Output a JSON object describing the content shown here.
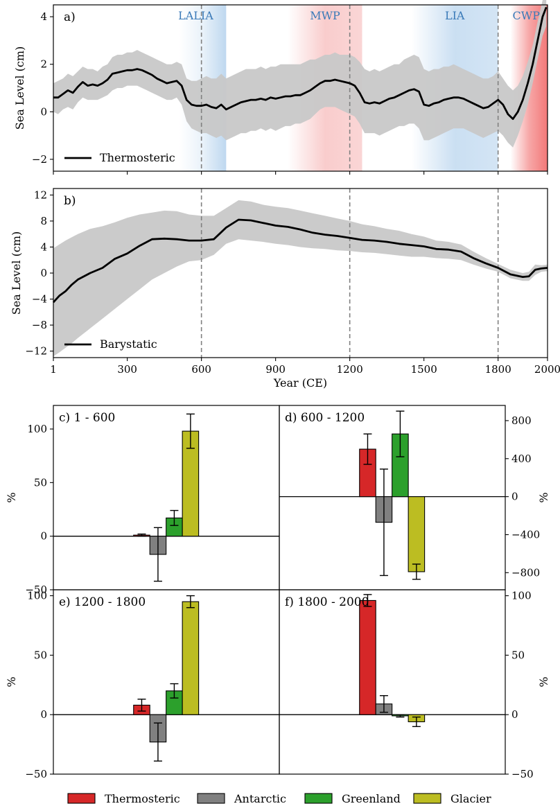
{
  "chart_data": [
    {
      "id": "a",
      "type": "line",
      "panel_label": "a)",
      "ylabel": "Sea Level (cm)",
      "xlim": [
        1,
        2000
      ],
      "ylim": [
        -2.5,
        4.5
      ],
      "yticks": [
        -2,
        0,
        2,
        4
      ],
      "ytick_labels": [
        "−2",
        "0",
        "2",
        "4"
      ],
      "grid": false,
      "legend": {
        "position": "bottom-left",
        "entries": [
          "Thermosteric"
        ]
      },
      "vlines": [
        600,
        1200,
        1800
      ],
      "periods": [
        {
          "label": "LALIA",
          "start": 510,
          "end": 700,
          "color": "#6fa8dc"
        },
        {
          "label": "MWP",
          "start": 950,
          "end": 1250,
          "color": "#f4a3a3"
        },
        {
          "label": "LIA",
          "start": 1450,
          "end": 1800,
          "color": "#9fc5e8"
        },
        {
          "label": "CWP",
          "start": 1850,
          "end": 2000,
          "color": "#f06060"
        }
      ],
      "series": [
        {
          "name": "Thermosteric",
          "x": [
            1,
            20,
            40,
            60,
            80,
            100,
            120,
            140,
            160,
            180,
            200,
            220,
            240,
            260,
            280,
            300,
            320,
            340,
            360,
            380,
            400,
            420,
            440,
            460,
            480,
            500,
            520,
            540,
            560,
            580,
            600,
            620,
            640,
            660,
            680,
            700,
            720,
            740,
            760,
            780,
            800,
            820,
            840,
            860,
            880,
            900,
            920,
            940,
            960,
            980,
            1000,
            1020,
            1040,
            1060,
            1080,
            1100,
            1120,
            1140,
            1160,
            1180,
            1200,
            1220,
            1240,
            1260,
            1280,
            1300,
            1320,
            1340,
            1360,
            1380,
            1400,
            1420,
            1440,
            1460,
            1480,
            1500,
            1520,
            1540,
            1560,
            1580,
            1600,
            1620,
            1640,
            1660,
            1680,
            1700,
            1720,
            1740,
            1760,
            1780,
            1800,
            1820,
            1840,
            1860,
            1880,
            1900,
            1920,
            1940,
            1960,
            1980,
            1995
          ],
          "y": [
            0.6,
            0.6,
            0.75,
            0.9,
            0.8,
            1.05,
            1.25,
            1.1,
            1.15,
            1.1,
            1.2,
            1.35,
            1.6,
            1.65,
            1.7,
            1.75,
            1.75,
            1.8,
            1.75,
            1.65,
            1.55,
            1.4,
            1.3,
            1.2,
            1.25,
            1.3,
            1.1,
            0.5,
            0.3,
            0.25,
            0.25,
            0.3,
            0.2,
            0.15,
            0.3,
            0.1,
            0.2,
            0.3,
            0.4,
            0.45,
            0.5,
            0.5,
            0.55,
            0.5,
            0.6,
            0.55,
            0.6,
            0.65,
            0.65,
            0.7,
            0.7,
            0.8,
            0.9,
            1.05,
            1.2,
            1.3,
            1.3,
            1.35,
            1.3,
            1.25,
            1.2,
            1.1,
            0.8,
            0.4,
            0.35,
            0.4,
            0.35,
            0.45,
            0.55,
            0.6,
            0.7,
            0.8,
            0.9,
            0.95,
            0.85,
            0.3,
            0.25,
            0.35,
            0.4,
            0.5,
            0.55,
            0.6,
            0.6,
            0.55,
            0.45,
            0.35,
            0.25,
            0.15,
            0.2,
            0.35,
            0.5,
            0.3,
            -0.1,
            -0.3,
            0.0,
            0.5,
            1.2,
            2.0,
            3.0,
            4.0,
            4.4
          ],
          "lower": [
            0.0,
            -0.1,
            0.1,
            0.2,
            0.1,
            0.4,
            0.6,
            0.5,
            0.5,
            0.5,
            0.6,
            0.7,
            0.9,
            1.0,
            1.0,
            1.1,
            1.1,
            1.1,
            1.0,
            0.9,
            0.8,
            0.7,
            0.6,
            0.5,
            0.5,
            0.6,
            0.3,
            -0.4,
            -0.7,
            -0.8,
            -0.9,
            -0.9,
            -1.0,
            -1.1,
            -1.0,
            -1.2,
            -1.1,
            -1.0,
            -0.9,
            -0.9,
            -0.8,
            -0.8,
            -0.7,
            -0.8,
            -0.7,
            -0.8,
            -0.7,
            -0.6,
            -0.6,
            -0.5,
            -0.5,
            -0.4,
            -0.3,
            -0.1,
            0.1,
            0.2,
            0.2,
            0.2,
            0.1,
            0.0,
            -0.1,
            -0.2,
            -0.5,
            -0.9,
            -0.9,
            -0.9,
            -1.0,
            -0.9,
            -0.8,
            -0.7,
            -0.6,
            -0.6,
            -0.5,
            -0.5,
            -0.7,
            -1.2,
            -1.2,
            -1.1,
            -1.0,
            -0.9,
            -0.8,
            -0.7,
            -0.7,
            -0.7,
            -0.8,
            -0.9,
            -1.0,
            -1.1,
            -1.0,
            -0.9,
            -0.8,
            -1.0,
            -1.3,
            -1.5,
            -1.0,
            -0.4,
            0.3,
            1.2,
            2.2,
            3.2,
            3.6
          ],
          "upper": [
            1.2,
            1.3,
            1.4,
            1.6,
            1.5,
            1.7,
            1.9,
            1.8,
            1.8,
            1.7,
            1.9,
            2.0,
            2.3,
            2.4,
            2.4,
            2.5,
            2.5,
            2.6,
            2.5,
            2.4,
            2.3,
            2.2,
            2.1,
            2.0,
            2.0,
            2.1,
            2.0,
            1.4,
            1.3,
            1.3,
            1.4,
            1.5,
            1.4,
            1.4,
            1.6,
            1.4,
            1.5,
            1.6,
            1.7,
            1.8,
            1.8,
            1.8,
            1.9,
            1.8,
            1.9,
            1.9,
            2.0,
            2.0,
            2.0,
            2.0,
            2.0,
            2.1,
            2.2,
            2.2,
            2.3,
            2.4,
            2.4,
            2.5,
            2.4,
            2.4,
            2.4,
            2.3,
            2.1,
            1.8,
            1.7,
            1.8,
            1.7,
            1.8,
            1.9,
            2.0,
            2.0,
            2.2,
            2.3,
            2.4,
            2.3,
            1.8,
            1.7,
            1.8,
            1.8,
            1.9,
            1.9,
            2.0,
            1.9,
            1.8,
            1.7,
            1.6,
            1.5,
            1.4,
            1.4,
            1.5,
            1.7,
            1.4,
            1.1,
            0.9,
            1.1,
            1.5,
            2.1,
            2.8,
            3.8,
            4.7,
            5.0
          ]
        }
      ]
    },
    {
      "id": "b",
      "type": "line",
      "panel_label": "b)",
      "xlabel": "Year (CE)",
      "ylabel": "Sea Level (cm)",
      "xlim": [
        1,
        2000
      ],
      "ylim": [
        -13,
        13
      ],
      "xticks": [
        1,
        300,
        600,
        900,
        1200,
        1500,
        1800,
        2000
      ],
      "yticks": [
        -12,
        -8,
        -4,
        0,
        4,
        8,
        12
      ],
      "ytick_labels": [
        "−12",
        "−8",
        "−4",
        "0",
        "4",
        "8",
        "12"
      ],
      "grid": false,
      "legend": {
        "position": "bottom-left",
        "entries": [
          "Barystatic"
        ]
      },
      "vlines": [
        600,
        1200,
        1800
      ],
      "series": [
        {
          "name": "Barystatic",
          "x": [
            1,
            25,
            50,
            75,
            100,
            150,
            200,
            250,
            300,
            350,
            400,
            450,
            500,
            550,
            600,
            650,
            700,
            750,
            800,
            850,
            900,
            950,
            1000,
            1050,
            1100,
            1150,
            1200,
            1250,
            1300,
            1350,
            1400,
            1450,
            1500,
            1550,
            1600,
            1650,
            1700,
            1750,
            1800,
            1850,
            1900,
            1925,
            1950,
            1975,
            2000
          ],
          "y": [
            -4.5,
            -3.5,
            -2.8,
            -1.8,
            -1.0,
            0.0,
            0.8,
            2.2,
            3.0,
            4.2,
            5.2,
            5.3,
            5.2,
            5.0,
            5.0,
            5.2,
            7.0,
            8.2,
            8.1,
            7.7,
            7.3,
            7.1,
            6.7,
            6.2,
            5.9,
            5.7,
            5.4,
            5.1,
            5.0,
            4.8,
            4.5,
            4.3,
            4.1,
            3.7,
            3.6,
            3.3,
            2.3,
            1.5,
            0.8,
            -0.2,
            -0.6,
            -0.5,
            0.5,
            0.7,
            0.8
          ],
          "lower": [
            -12.8,
            -12.2,
            -11.5,
            -10.8,
            -10.0,
            -8.5,
            -7.0,
            -5.5,
            -4.0,
            -2.5,
            -1.0,
            0.0,
            1.0,
            1.8,
            2.0,
            2.8,
            4.5,
            5.2,
            5.0,
            4.8,
            4.5,
            4.3,
            4.0,
            3.8,
            3.7,
            3.5,
            3.4,
            3.2,
            3.1,
            2.9,
            2.7,
            2.5,
            2.5,
            2.3,
            2.2,
            2.0,
            1.3,
            0.7,
            0.2,
            -0.8,
            -1.2,
            -1.2,
            -0.3,
            0.2,
            0.3
          ],
          "upper": [
            3.8,
            4.4,
            5.0,
            5.5,
            6.0,
            6.8,
            7.2,
            7.8,
            8.5,
            9.0,
            9.3,
            9.6,
            9.5,
            9.0,
            8.8,
            8.8,
            10.0,
            11.2,
            11.0,
            10.5,
            10.2,
            10.0,
            9.6,
            9.2,
            8.8,
            8.4,
            8.0,
            7.5,
            7.2,
            6.8,
            6.5,
            6.0,
            5.6,
            5.0,
            4.8,
            4.4,
            3.3,
            2.3,
            1.4,
            0.5,
            0.0,
            0.2,
            1.3,
            1.2,
            1.3
          ]
        }
      ]
    },
    {
      "id": "c",
      "type": "bar",
      "panel_label": "c) 1 - 600",
      "ylabel": "%",
      "ylim": [
        -50,
        122
      ],
      "yticks": [
        -50,
        0,
        50,
        100
      ],
      "ytick_labels": [
        "−50",
        "0",
        "50",
        "100"
      ],
      "y_axis_side": "left",
      "categories": [
        "Thermosteric",
        "Antarctic",
        "Greenland",
        "Glacier"
      ],
      "values": [
        1,
        -17,
        17,
        98
      ],
      "errors": [
        1,
        25,
        7,
        16
      ]
    },
    {
      "id": "d",
      "type": "bar",
      "panel_label": "d) 600 - 1200",
      "ylabel": "%",
      "ylim": [
        -980,
        960
      ],
      "yticks": [
        -800,
        -400,
        0,
        400,
        800
      ],
      "ytick_labels": [
        "−800",
        "−400",
        "0",
        "400",
        "800"
      ],
      "y_axis_side": "right",
      "categories": [
        "Thermosteric",
        "Antarctic",
        "Greenland",
        "Glacier"
      ],
      "values": [
        500,
        -270,
        660,
        -790
      ],
      "errors": [
        160,
        560,
        240,
        80
      ]
    },
    {
      "id": "e",
      "type": "bar",
      "panel_label": "e) 1200 - 1800",
      "ylabel": "%",
      "ylim": [
        -50,
        105
      ],
      "yticks": [
        -50,
        0,
        50,
        100
      ],
      "ytick_labels": [
        "−50",
        "0",
        "50",
        "100"
      ],
      "y_axis_side": "left",
      "categories": [
        "Thermosteric",
        "Antarctic",
        "Greenland",
        "Glacier"
      ],
      "values": [
        8,
        -23,
        20,
        95
      ],
      "errors": [
        5,
        16,
        6,
        5
      ]
    },
    {
      "id": "f",
      "type": "bar",
      "panel_label": "f) 1800 - 2000",
      "ylabel": "%",
      "ylim": [
        -50,
        105
      ],
      "yticks": [
        -50,
        0,
        50,
        100
      ],
      "ytick_labels": [
        "−50",
        "0",
        "50",
        "100"
      ],
      "y_axis_side": "right",
      "categories": [
        "Thermosteric",
        "Antarctic",
        "Greenland",
        "Glacier"
      ],
      "values": [
        96,
        9,
        -1,
        -6
      ],
      "errors": [
        5,
        7,
        1,
        4
      ]
    }
  ],
  "legend": {
    "position": "bottom",
    "entries": [
      {
        "label": "Thermosteric",
        "color": "#d62728"
      },
      {
        "label": "Antarctic",
        "color": "#808080"
      },
      {
        "label": "Greenland",
        "color": "#2ca02c"
      },
      {
        "label": "Glacier",
        "color": "#bcbd22"
      }
    ]
  },
  "colors": {
    "band": "#c8c8c8",
    "line": "#000000",
    "vline": "#808080",
    "period_text": "#3a7ab8"
  }
}
